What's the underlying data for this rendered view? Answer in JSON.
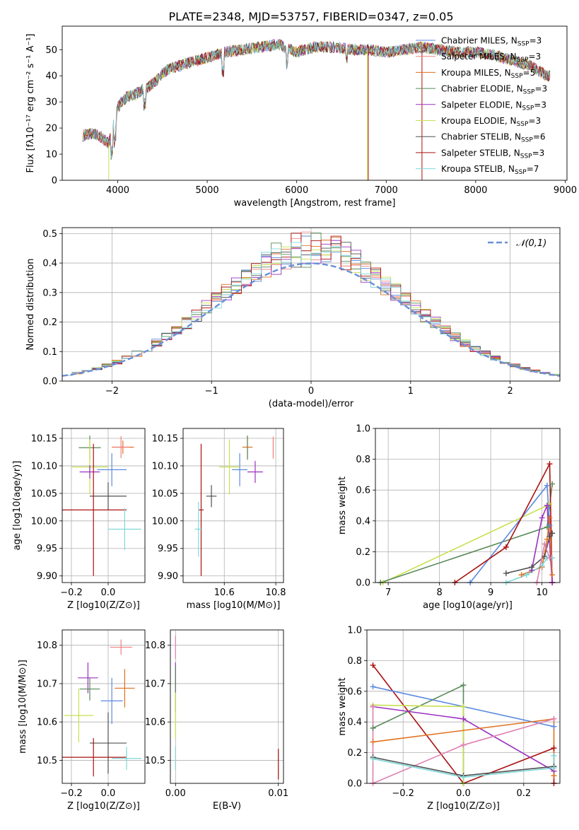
{
  "figure": {
    "title": "PLATE=2348, MJD=53757, FIBERID=0347, z=0.05"
  },
  "colors": {
    "chabrier_miles": "#5b8ae0",
    "salpeter_miles": "#f08080",
    "kroupa_miles": "#e07020",
    "chabrier_elodie": "#5a8a5a",
    "salpeter_elodie": "#9b30c0",
    "kroupa_elodie": "#c8e050",
    "chabrier_stelib": "#505050",
    "salpeter_stelib": "#aa1010",
    "kroupa_stelib": "#7fd7d7",
    "pink": "#e080b0",
    "normal_curve": "#6b8fd6"
  },
  "chart_data": [
    {
      "id": "spectrum",
      "type": "line",
      "title": "PLATE=2348, MJD=53757, FIBERID=0347, z=0.05",
      "xlabel": "wavelength [Angstrom, rest frame]",
      "ylabel": "Flux [fλ10⁻¹⁷ erg cm⁻² s⁻¹ A⁻¹]",
      "xlim": [
        3380,
        9020
      ],
      "ylim": [
        0,
        59
      ],
      "xticks": [
        4000,
        5000,
        6000,
        7000,
        8000,
        9000
      ],
      "yticks": [
        0,
        10,
        20,
        30,
        40,
        50
      ],
      "grid": false,
      "legend_position": "top-right",
      "envelope": {
        "x": [
          3600,
          3700,
          3800,
          3900,
          4000,
          4100,
          4200,
          4300,
          4400,
          4500,
          4600,
          4700,
          4800,
          5000,
          5200,
          5400,
          5600,
          5800,
          6000,
          6200,
          6400,
          6600,
          6800,
          7000,
          7200,
          7400,
          7600,
          7800,
          8000,
          8200,
          8400,
          8600,
          8700,
          8800
        ],
        "y": [
          17,
          18,
          17,
          14,
          28,
          32,
          33,
          35,
          37,
          41,
          43,
          44,
          45,
          47,
          49,
          50,
          51,
          52,
          49,
          51,
          51,
          50,
          50,
          49,
          50,
          51,
          50,
          49,
          49,
          48,
          46,
          44,
          42,
          40
        ]
      },
      "series": [
        {
          "name": "Chabrier MILES, N_SSP=3",
          "label_main": "Chabrier MILES, N",
          "label_sub": "SSP",
          "label_tail": "=3",
          "color_key": "chabrier_miles"
        },
        {
          "name": "Salpeter MILES, N_SSP=3",
          "label_main": "Salpeter MILES, N",
          "label_sub": "SSP",
          "label_tail": "=3",
          "color_key": "salpeter_miles"
        },
        {
          "name": "Kroupa MILES, N_SSP=5",
          "label_main": "Kroupa MILES, N",
          "label_sub": "SSP",
          "label_tail": "=5",
          "color_key": "kroupa_miles"
        },
        {
          "name": "Chabrier ELODIE, N_SSP=3",
          "label_main": "Chabrier ELODIE, N",
          "label_sub": "SSP",
          "label_tail": "=3",
          "color_key": "chabrier_elodie"
        },
        {
          "name": "Salpeter ELODIE, N_SSP=3",
          "label_main": "Salpeter ELODIE, N",
          "label_sub": "SSP",
          "label_tail": "=3",
          "color_key": "salpeter_elodie"
        },
        {
          "name": "Kroupa ELODIE, N_SSP=3",
          "label_main": "Kroupa ELODIE, N",
          "label_sub": "SSP",
          "label_tail": "=3",
          "color_key": "kroupa_elodie"
        },
        {
          "name": "Chabrier STELIB, N_SSP=6",
          "label_main": "Chabrier STELIB, N",
          "label_sub": "SSP",
          "label_tail": "=6",
          "color_key": "chabrier_stelib"
        },
        {
          "name": "Salpeter STELIB, N_SSP=3",
          "label_main": "Salpeter STELIB, N",
          "label_sub": "SSP",
          "label_tail": "=3",
          "color_key": "salpeter_stelib"
        },
        {
          "name": "Kroupa STELIB, N_SSP=7",
          "label_main": "Kroupa STELIB, N",
          "label_sub": "SSP",
          "label_tail": "=7",
          "color_key": "kroupa_stelib"
        }
      ],
      "drops": [
        {
          "x": 3900,
          "color_key": "kroupa_elodie"
        },
        {
          "x": 6790,
          "color_key": "kroupa_elodie"
        },
        {
          "x": 6800,
          "color_key": "salpeter_stelib"
        },
        {
          "x": 7400,
          "color_key": "salpeter_stelib"
        }
      ]
    },
    {
      "id": "residuals",
      "type": "histogram",
      "xlabel": "(data-model)/error",
      "ylabel": "Normed distribution",
      "xlim": [
        -2.5,
        2.5
      ],
      "ylim": [
        0,
        0.52
      ],
      "xticks": [
        -2,
        -1,
        0,
        1,
        2
      ],
      "yticks": [
        0.0,
        0.1,
        0.2,
        0.3,
        0.4,
        0.5
      ],
      "grid": true,
      "legend_position": "top-right",
      "legend_label": "𝒩(0,1)",
      "bin_width": 0.1,
      "bin_start": -2.5,
      "series_colors": [
        "chabrier_miles",
        "salpeter_miles",
        "kroupa_miles",
        "chabrier_elodie",
        "salpeter_elodie",
        "kroupa_elodie",
        "chabrier_stelib",
        "salpeter_stelib",
        "kroupa_stelib"
      ]
    },
    {
      "id": "age_vs_z",
      "type": "scatter",
      "xlabel": "Z [log10(Z/Z⊙)]",
      "ylabel": "age  [log10(age/yr)]",
      "xlim": [
        -0.25,
        0.2
      ],
      "ylim": [
        9.888,
        10.168
      ],
      "xticks": [
        -0.2,
        0.0
      ],
      "yticks": [
        9.9,
        9.95,
        10.0,
        10.05,
        10.1,
        10.15
      ],
      "grid": true,
      "points": [
        {
          "x": -0.1,
          "y": 10.133,
          "xerr": 0.06,
          "yerr": 0.022,
          "color_key": "chabrier_elodie"
        },
        {
          "x": 0.08,
          "y": 10.134,
          "xerr": 0.06,
          "yerr": 0.012,
          "color_key": "kroupa_miles"
        },
        {
          "x": 0.07,
          "y": 10.134,
          "xerr": 0.045,
          "yerr": 0.02,
          "color_key": "salpeter_miles"
        },
        {
          "x": -0.1,
          "y": 10.098,
          "xerr": 0.1,
          "yerr": 0.05,
          "color_key": "kroupa_elodie"
        },
        {
          "x": 0.02,
          "y": 10.093,
          "xerr": 0.08,
          "yerr": 0.03,
          "color_key": "chabrier_miles"
        },
        {
          "x": -0.1,
          "y": 10.089,
          "xerr": 0.055,
          "yerr": 0.012,
          "color_key": "salpeter_elodie"
        },
        {
          "x": 0.0,
          "y": 10.045,
          "xerr": 0.1,
          "yerr": 0.025,
          "color_key": "chabrier_stelib"
        },
        {
          "x": -0.08,
          "y": 10.02,
          "xerr": 0.18,
          "yerr": 0.12,
          "color_key": "salpeter_stelib"
        },
        {
          "x": 0.09,
          "y": 9.985,
          "xerr": 0.09,
          "yerr": 0.038,
          "color_key": "kroupa_stelib"
        }
      ]
    },
    {
      "id": "age_vs_mass",
      "type": "scatter",
      "xlabel": "mass [log10(M/M⊙)]",
      "ylabel": "",
      "xlim": [
        10.44,
        10.83
      ],
      "ylim": [
        9.888,
        10.168
      ],
      "xticks": [
        10.6,
        10.8
      ],
      "yticks": [
        9.9,
        9.95,
        10.0,
        10.05,
        10.1,
        10.15
      ],
      "grid": true,
      "points": [
        {
          "x": 10.79,
          "y": 10.133,
          "xerr": 0.0,
          "yerr": 0.02,
          "color_key": "salpeter_miles"
        },
        {
          "x": 10.69,
          "y": 10.134,
          "xerr": 0.02,
          "yerr": 0.02,
          "color_key": "kroupa_miles"
        },
        {
          "x": 10.69,
          "y": 10.133,
          "xerr": 0.0,
          "yerr": 0.022,
          "color_key": "chabrier_elodie"
        },
        {
          "x": 10.72,
          "y": 10.089,
          "xerr": 0.03,
          "yerr": 0.02,
          "color_key": "salpeter_elodie"
        },
        {
          "x": 10.66,
          "y": 10.093,
          "xerr": 0.03,
          "yerr": 0.03,
          "color_key": "chabrier_miles"
        },
        {
          "x": 10.62,
          "y": 10.098,
          "xerr": 0.04,
          "yerr": 0.05,
          "color_key": "kroupa_elodie"
        },
        {
          "x": 10.55,
          "y": 10.045,
          "xerr": 0.02,
          "yerr": 0.02,
          "color_key": "chabrier_stelib"
        },
        {
          "x": 10.51,
          "y": 10.02,
          "xerr": 0.01,
          "yerr": 0.12,
          "color_key": "salpeter_stelib"
        },
        {
          "x": 10.5,
          "y": 9.985,
          "xerr": 0.015,
          "yerr": 0.05,
          "color_key": "kroupa_stelib"
        }
      ]
    },
    {
      "id": "weight_vs_age",
      "type": "line",
      "xlabel": "age  [log10(age/yr)]",
      "ylabel": "mass weight",
      "xlim": [
        6.75,
        10.35
      ],
      "ylim": [
        0,
        1.0
      ],
      "xticks": [
        7,
        8,
        9,
        10
      ],
      "yticks": [
        0.0,
        0.2,
        0.4,
        0.6,
        0.8,
        1.0
      ],
      "grid": true,
      "series": [
        {
          "color_key": "kroupa_elodie",
          "x": [
            6.9,
            10.1,
            10.15
          ],
          "y": [
            0.0,
            0.5,
            0.51
          ]
        },
        {
          "color_key": "chabrier_elodie",
          "x": [
            6.85,
            10.1,
            10.2
          ],
          "y": [
            0.0,
            0.36,
            0.64
          ]
        },
        {
          "color_key": "chabrier_miles",
          "x": [
            8.6,
            10.1,
            10.15
          ],
          "y": [
            0.0,
            0.63,
            0.37
          ]
        },
        {
          "color_key": "salpeter_stelib",
          "x": [
            8.3,
            9.3,
            10.15,
            10.2
          ],
          "y": [
            0.0,
            0.23,
            0.77,
            0.0
          ]
        },
        {
          "color_key": "salpeter_elodie",
          "x": [
            9.8,
            10.0,
            10.1,
            10.2
          ],
          "y": [
            0.08,
            0.42,
            0.5,
            0.0
          ]
        },
        {
          "color_key": "chabrier_stelib",
          "x": [
            9.3,
            9.8,
            10.05,
            10.15,
            10.2
          ],
          "y": [
            0.06,
            0.1,
            0.17,
            0.3,
            0.32
          ]
        },
        {
          "color_key": "kroupa_miles",
          "x": [
            9.6,
            10.0,
            10.1,
            10.15,
            10.2
          ],
          "y": [
            0.05,
            0.1,
            0.28,
            0.42,
            0.05
          ]
        },
        {
          "color_key": "kroupa_stelib",
          "x": [
            9.3,
            9.7,
            10.0,
            10.1,
            10.2
          ],
          "y": [
            0.0,
            0.05,
            0.11,
            0.16,
            0.16
          ]
        },
        {
          "color_key": "pink",
          "x": [
            9.9,
            10.05,
            10.15
          ],
          "y": [
            0.0,
            0.25,
            0.16
          ]
        }
      ]
    },
    {
      "id": "mass_vs_z",
      "type": "scatter",
      "xlabel": "Z [log10(Z/Z⊙)]",
      "ylabel": "mass [log10(M/M⊙)]",
      "xlim": [
        -0.25,
        0.2
      ],
      "ylim": [
        10.44,
        10.84
      ],
      "xticks": [
        -0.2,
        0.0
      ],
      "yticks": [
        10.5,
        10.6,
        10.7,
        10.8
      ],
      "grid": true,
      "points": [
        {
          "x": 0.07,
          "y": 10.795,
          "xerr": 0.06,
          "yerr": 0.02,
          "color_key": "salpeter_miles"
        },
        {
          "x": -0.11,
          "y": 10.715,
          "xerr": 0.055,
          "yerr": 0.04,
          "color_key": "salpeter_elodie"
        },
        {
          "x": 0.09,
          "y": 10.688,
          "xerr": 0.055,
          "yerr": 0.05,
          "color_key": "kroupa_miles"
        },
        {
          "x": -0.1,
          "y": 10.686,
          "xerr": 0.055,
          "yerr": 0.03,
          "color_key": "chabrier_elodie"
        },
        {
          "x": 0.02,
          "y": 10.655,
          "xerr": 0.06,
          "yerr": 0.06,
          "color_key": "chabrier_miles"
        },
        {
          "x": -0.16,
          "y": 10.617,
          "xerr": 0.08,
          "yerr": 0.07,
          "color_key": "kroupa_elodie"
        },
        {
          "x": 0.0,
          "y": 10.545,
          "xerr": 0.1,
          "yerr": 0.08,
          "color_key": "chabrier_stelib"
        },
        {
          "x": -0.08,
          "y": 10.508,
          "xerr": 0.18,
          "yerr": 0.05,
          "color_key": "salpeter_stelib"
        },
        {
          "x": 0.1,
          "y": 10.505,
          "xerr": 0.08,
          "yerr": 0.03,
          "color_key": "kroupa_stelib"
        }
      ]
    },
    {
      "id": "mass_vs_ebv",
      "type": "scatter",
      "xlabel": "E(B-V)",
      "ylabel": "",
      "xlim": [
        -0.0005,
        0.0105
      ],
      "ylim": [
        10.44,
        10.84
      ],
      "xticks": [
        0.0,
        0.01
      ],
      "yticks": [
        10.5,
        10.6,
        10.7,
        10.8
      ],
      "grid": true,
      "points": [
        {
          "x": 0.0,
          "y": 10.795,
          "xerr": 0,
          "yerr": 0.03,
          "color_key": "pink"
        },
        {
          "x": 0.0,
          "y": 10.715,
          "xerr": 0,
          "yerr": 0.04,
          "color_key": "salpeter_elodie"
        },
        {
          "x": 0.0,
          "y": 10.686,
          "xerr": 0,
          "yerr": 0.06,
          "color_key": "chabrier_elodie"
        },
        {
          "x": 0.0,
          "y": 10.617,
          "xerr": 0,
          "yerr": 0.06,
          "color_key": "kroupa_elodie"
        },
        {
          "x": 0.0,
          "y": 10.505,
          "xerr": 0,
          "yerr": 0.03,
          "color_key": "kroupa_stelib"
        },
        {
          "x": 0.01,
          "y": 10.49,
          "xerr": 0,
          "yerr": 0.04,
          "color_key": "salpeter_stelib"
        }
      ]
    },
    {
      "id": "weight_vs_z",
      "type": "line",
      "xlabel": "Z [log10(Z/Z⊙)]",
      "ylabel": "mass weight",
      "xlim": [
        -0.32,
        0.32
      ],
      "ylim": [
        0,
        1.0
      ],
      "xticks": [
        -0.2,
        0.0,
        0.2
      ],
      "yticks": [
        0.0,
        0.2,
        0.4,
        0.6,
        0.8,
        1.0
      ],
      "grid": true,
      "series": [
        {
          "color_key": "salpeter_stelib",
          "x": [
            -0.3,
            0.0,
            0.3,
            0.3
          ],
          "y": [
            0.77,
            0.0,
            0.23,
            0.0
          ]
        },
        {
          "color_key": "chabrier_miles",
          "x": [
            -0.3,
            0.3
          ],
          "y": [
            0.63,
            0.37
          ]
        },
        {
          "color_key": "chabrier_elodie",
          "x": [
            -0.3,
            0.0,
            0.0
          ],
          "y": [
            0.36,
            0.64,
            0.0
          ]
        },
        {
          "color_key": "kroupa_elodie",
          "x": [
            -0.3,
            0.0,
            0.0
          ],
          "y": [
            0.51,
            0.5,
            0.0
          ]
        },
        {
          "color_key": "salpeter_elodie",
          "x": [
            -0.3,
            0.0,
            0.3
          ],
          "y": [
            0.5,
            0.42,
            0.08
          ]
        },
        {
          "color_key": "kroupa_miles",
          "x": [
            -0.3,
            0.3,
            0.3
          ],
          "y": [
            0.27,
            0.42,
            0.05
          ]
        },
        {
          "color_key": "pink",
          "x": [
            -0.3,
            -0.3,
            0.0,
            0.3
          ],
          "y": [
            0.5,
            0.0,
            0.25,
            0.42
          ]
        },
        {
          "color_key": "chabrier_stelib",
          "x": [
            -0.3,
            0.0,
            0.3
          ],
          "y": [
            0.17,
            0.05,
            0.11
          ]
        },
        {
          "color_key": "kroupa_stelib",
          "x": [
            -0.3,
            0.0,
            0.3,
            0.3
          ],
          "y": [
            0.16,
            0.04,
            0.1,
            0.18
          ]
        }
      ]
    }
  ]
}
